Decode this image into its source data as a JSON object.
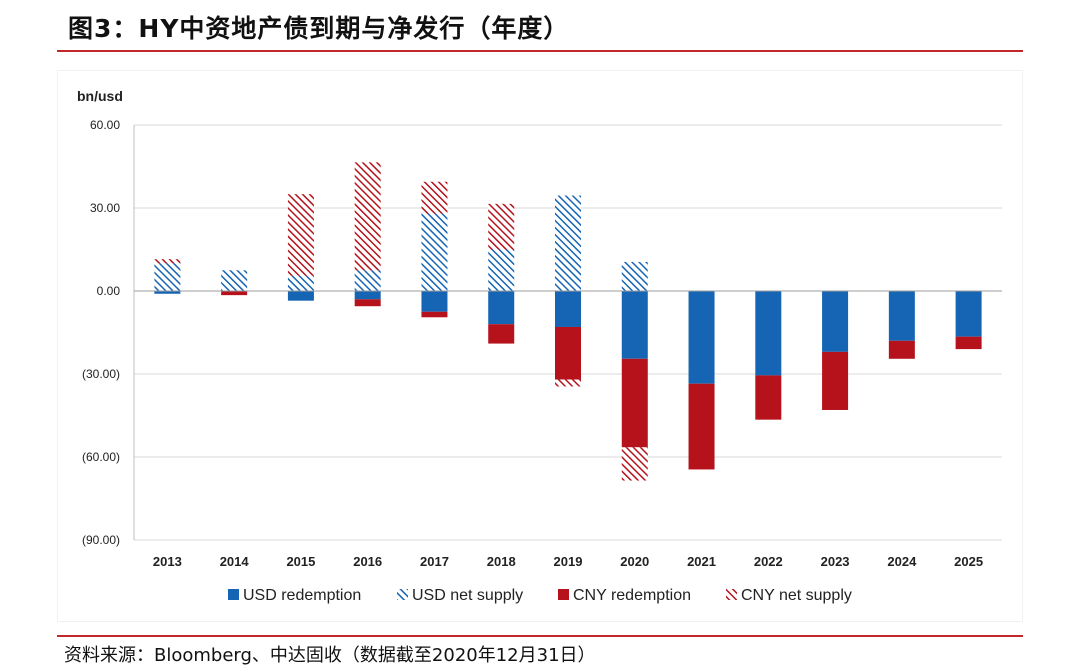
{
  "figure_title": "图3：HY中资地产债到期与净发行（年度）",
  "source_note": "资料来源：Bloomberg、中达固收（数据截至2020年12月31日）",
  "colors": {
    "rule": "#c0282c",
    "usd_blue": "#1565b4",
    "cny_red": "#b5121b",
    "grid": "#d9d9d9"
  },
  "chart_data": {
    "type": "bar",
    "stacked": true,
    "title": "",
    "ylabel": "bn/usd",
    "xlabel": "",
    "ylim": [
      -90,
      60
    ],
    "y_ticks": [
      60,
      30,
      0,
      -30,
      -60,
      -90
    ],
    "y_tick_labels": [
      "60.00",
      "30.00",
      "0.00",
      "(30.00)",
      "(60.00)",
      "(90.00)"
    ],
    "grid": true,
    "legend_position": "bottom",
    "categories": [
      "2013",
      "2014",
      "2015",
      "2016",
      "2017",
      "2018",
      "2019",
      "2020",
      "2021",
      "2022",
      "2023",
      "2024",
      "2025"
    ],
    "series": [
      {
        "name": "USD redemption",
        "fill": "solid-blue",
        "values": [
          -1,
          0,
          -3.5,
          -3,
          -7.5,
          -12,
          -13,
          -24.5,
          -33.5,
          -30.5,
          -22,
          -18,
          -16.5
        ]
      },
      {
        "name": "USD net supply",
        "fill": "hatched-blue",
        "values": [
          10,
          7.5,
          5.5,
          7.5,
          28,
          15,
          34.5,
          10.5,
          0,
          0,
          0,
          0,
          0
        ]
      },
      {
        "name": "CNY redemption",
        "fill": "solid-red",
        "values": [
          0,
          -1.5,
          0,
          -2.5,
          -2,
          -7,
          -19,
          -32,
          -31,
          -16,
          -21,
          -6.5,
          -4.5
        ]
      },
      {
        "name": "CNY net supply",
        "fill": "hatched-red",
        "values": [
          1.5,
          0,
          29.5,
          39,
          11.5,
          16.5,
          -2.5,
          -12,
          0,
          0,
          0,
          0,
          0
        ]
      }
    ]
  }
}
